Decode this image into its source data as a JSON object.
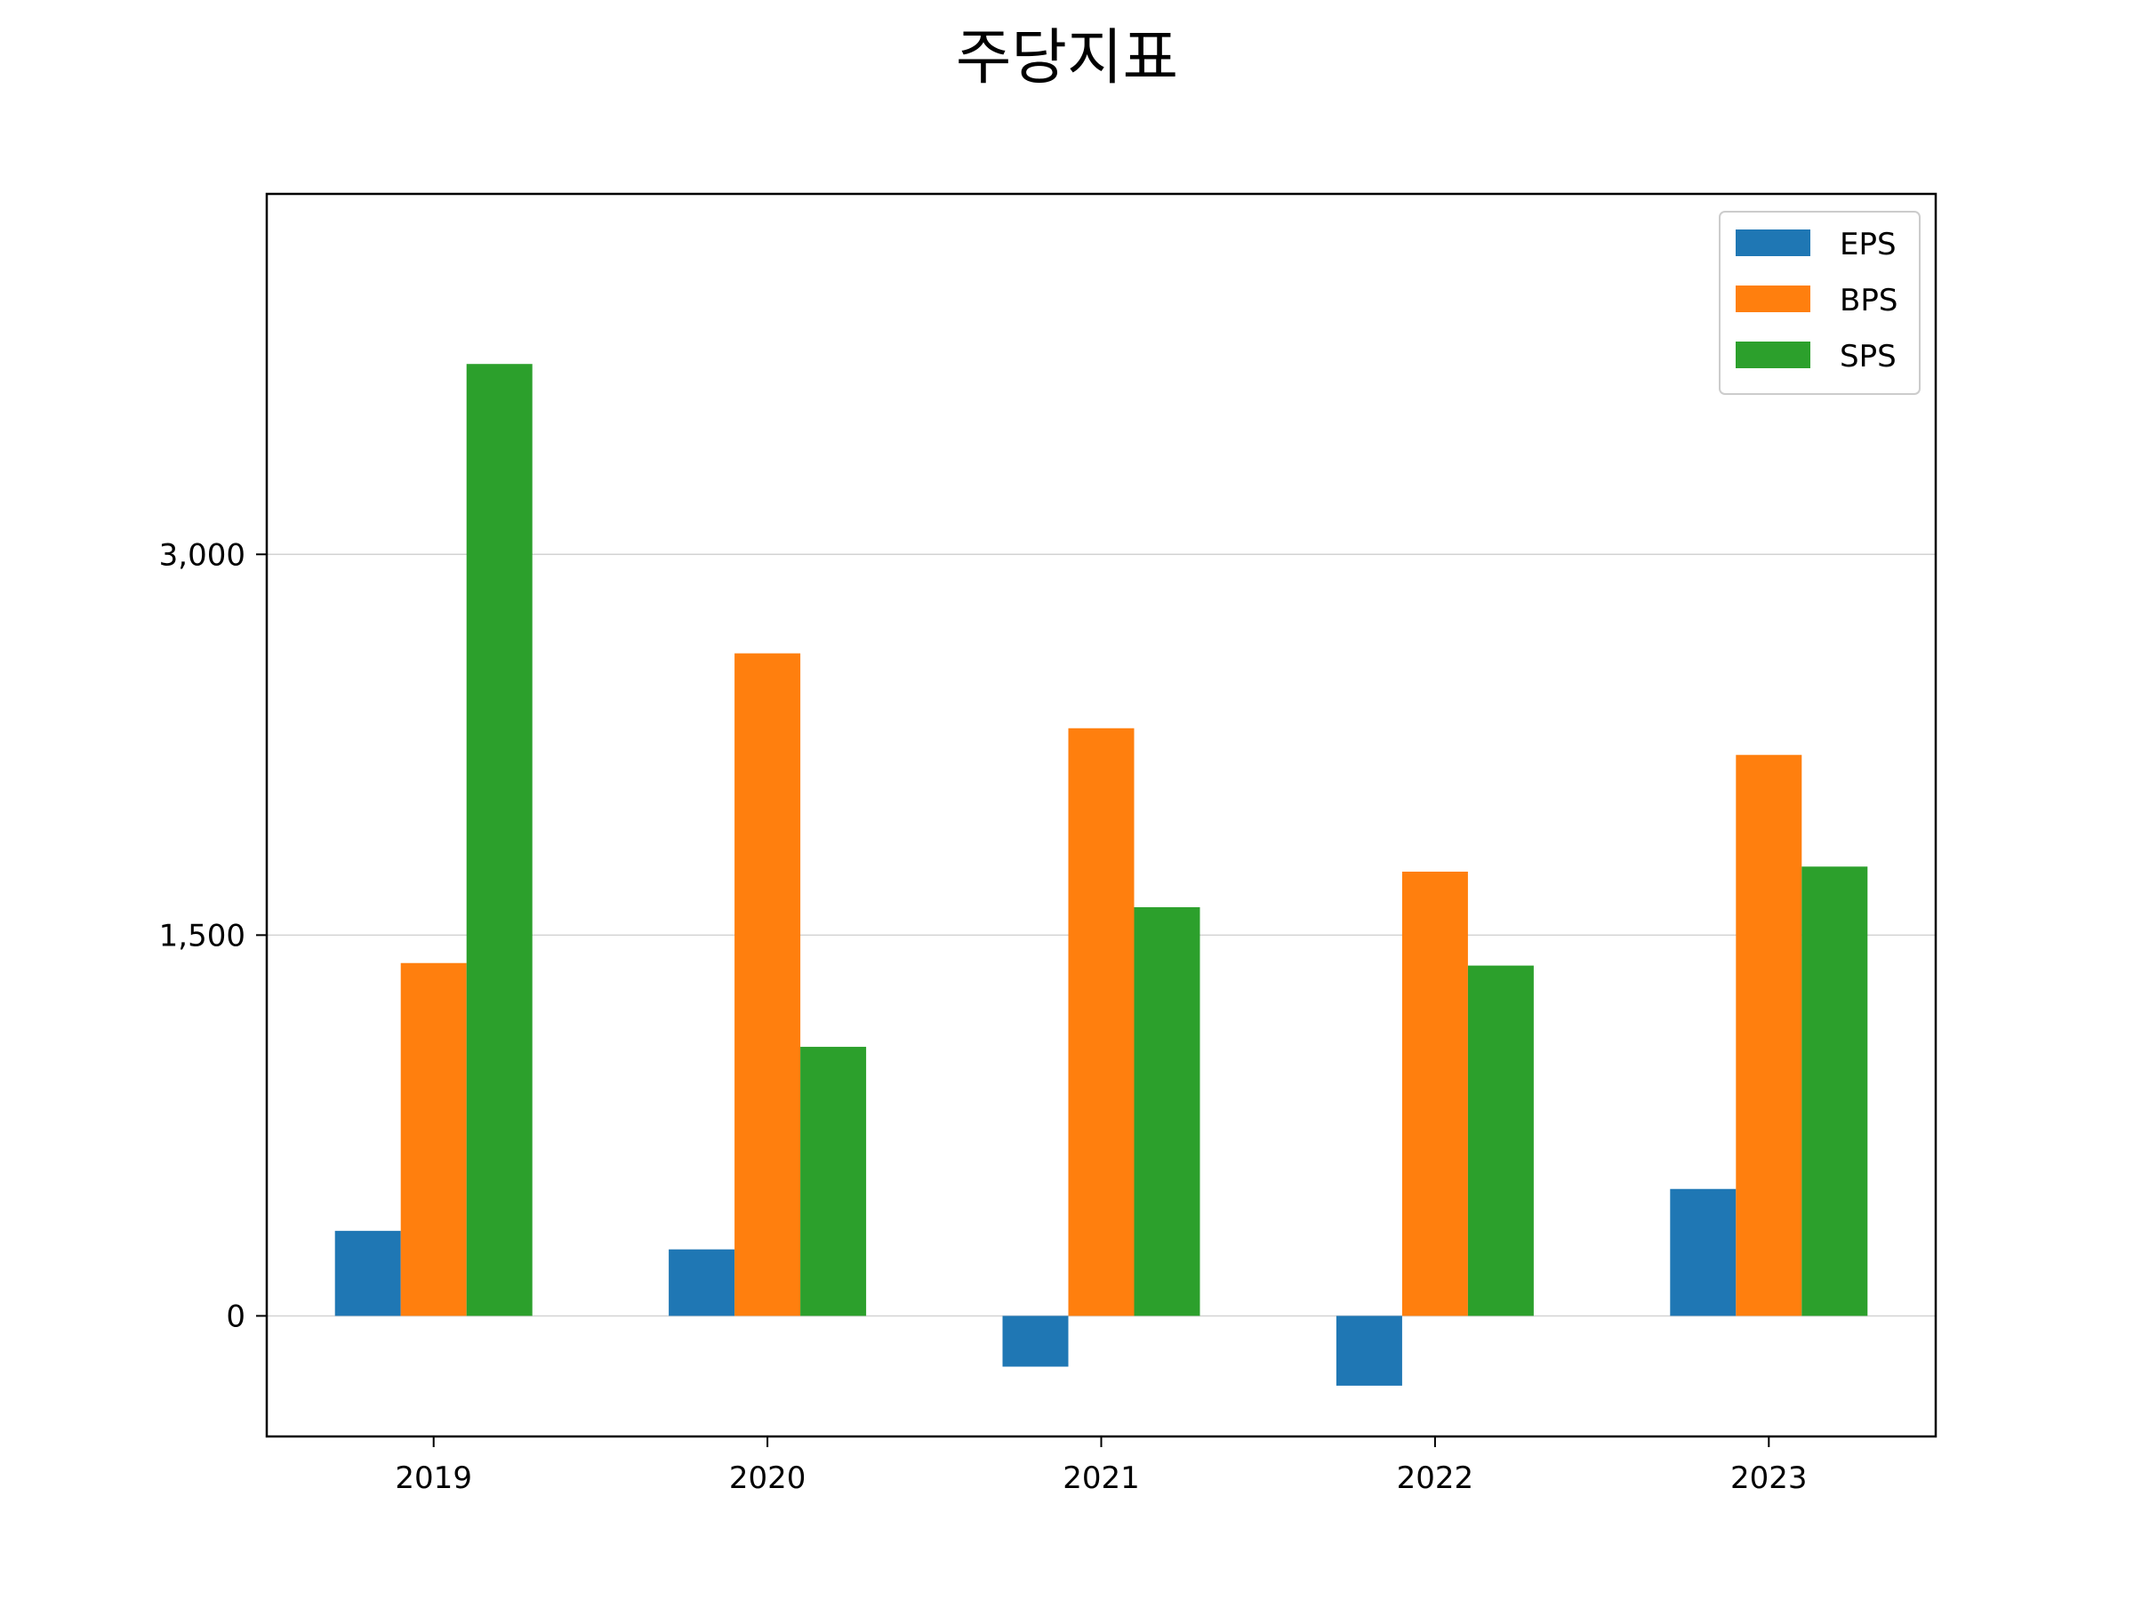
{
  "chart_data": {
    "type": "bar",
    "title": "주당지표",
    "categories": [
      "2019",
      "2020",
      "2021",
      "2022",
      "2023"
    ],
    "series": [
      {
        "name": "EPS",
        "color": "#1f77b4",
        "values": [
          335,
          262,
          -200,
          -275,
          500
        ]
      },
      {
        "name": "BPS",
        "color": "#ff7f0e",
        "values": [
          1390,
          2610,
          2315,
          1750,
          2210
        ]
      },
      {
        "name": "SPS",
        "color": "#2ca02c",
        "values": [
          3750,
          1060,
          1610,
          1380,
          1770
        ]
      }
    ],
    "ylim": [
      -475,
      4420
    ],
    "yticks": [
      0,
      1500,
      3000
    ],
    "ytick_labels": [
      "0",
      "1,500",
      "3,000"
    ],
    "grid": "horizontal",
    "legend_position": "top-right"
  }
}
